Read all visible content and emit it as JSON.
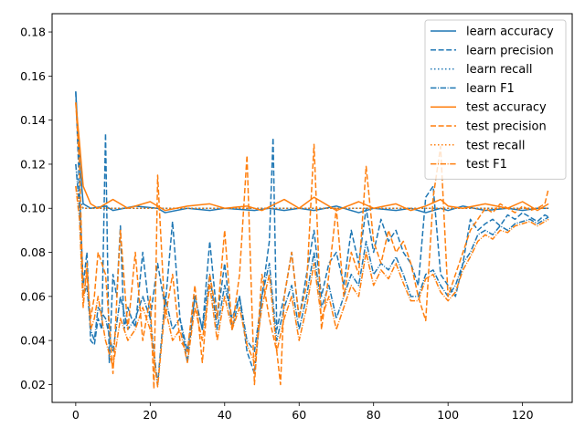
{
  "chart_data": {
    "type": "line",
    "title": "",
    "xlabel": "",
    "ylabel": "",
    "xlim": [
      -6.35,
      133.35
    ],
    "ylim": [
      0.0119,
      0.1883
    ],
    "xticks": [
      0,
      20,
      40,
      60,
      80,
      100,
      120
    ],
    "yticks": [
      0.02,
      0.04,
      0.06,
      0.08,
      0.1,
      0.12,
      0.14,
      0.16,
      0.18
    ],
    "ytick_labels": [
      "0.02",
      "0.04",
      "0.06",
      "0.08",
      "0.10",
      "0.12",
      "0.14",
      "0.16",
      "0.18"
    ],
    "grid": false,
    "legend_position": "top-right",
    "colors": {
      "learn": "#1f77b4",
      "test": "#ff7f0e"
    },
    "series": [
      {
        "name": "learn accuracy",
        "color": "#1f77b4",
        "dash": "solid",
        "x": [
          0,
          1,
          2,
          4,
          8,
          10,
          16,
          22,
          24,
          30,
          36,
          40,
          48,
          52,
          56,
          60,
          64,
          70,
          76,
          80,
          86,
          90,
          94,
          98,
          100,
          104,
          110,
          116,
          120,
          124,
          127
        ],
        "y": [
          0.153,
          0.122,
          0.102,
          0.1,
          0.101,
          0.099,
          0.101,
          0.1,
          0.098,
          0.1,
          0.099,
          0.1,
          0.099,
          0.1,
          0.099,
          0.1,
          0.099,
          0.101,
          0.098,
          0.1,
          0.099,
          0.1,
          0.098,
          0.1,
          0.099,
          0.101,
          0.099,
          0.1,
          0.099,
          0.1,
          0.1
        ]
      },
      {
        "name": "learn precision",
        "color": "#1f77b4",
        "dash": "dashed",
        "x": [
          0,
          1,
          2,
          3,
          4,
          5,
          6,
          7,
          8,
          9,
          10,
          11,
          12,
          13,
          14,
          15,
          16,
          18,
          20,
          22,
          24,
          26,
          28,
          30,
          32,
          34,
          36,
          38,
          40,
          42,
          44,
          46,
          48,
          50,
          52,
          53,
          54,
          56,
          58,
          60,
          62,
          64,
          66,
          68,
          70,
          72,
          74,
          76,
          78,
          80,
          82,
          84,
          86,
          88,
          90,
          92,
          94,
          96,
          98,
          100,
          102,
          104,
          106,
          108,
          110,
          112,
          114,
          116,
          118,
          120,
          122,
          124,
          126,
          127
        ],
        "y": [
          0.153,
          0.108,
          0.065,
          0.08,
          0.04,
          0.038,
          0.05,
          0.045,
          0.134,
          0.03,
          0.07,
          0.06,
          0.092,
          0.045,
          0.055,
          0.05,
          0.046,
          0.08,
          0.05,
          0.075,
          0.055,
          0.094,
          0.05,
          0.03,
          0.06,
          0.045,
          0.085,
          0.05,
          0.075,
          0.045,
          0.06,
          0.035,
          0.025,
          0.06,
          0.085,
          0.132,
          0.045,
          0.06,
          0.08,
          0.05,
          0.07,
          0.09,
          0.06,
          0.075,
          0.08,
          0.065,
          0.09,
          0.075,
          0.1,
          0.08,
          0.095,
          0.085,
          0.09,
          0.08,
          0.075,
          0.065,
          0.105,
          0.11,
          0.07,
          0.065,
          0.06,
          0.075,
          0.095,
          0.09,
          0.093,
          0.095,
          0.092,
          0.097,
          0.095,
          0.098,
          0.096,
          0.094,
          0.097,
          0.096
        ]
      },
      {
        "name": "learn recall",
        "color": "#1f77b4",
        "dash": "dotted",
        "x": [
          0,
          1,
          2,
          4,
          8,
          12,
          20,
          30,
          40,
          50,
          60,
          70,
          80,
          90,
          100,
          110,
          120,
          127
        ],
        "y": [
          0.12,
          0.105,
          0.1,
          0.1,
          0.1,
          0.1,
          0.1,
          0.1,
          0.1,
          0.1,
          0.1,
          0.1,
          0.1,
          0.1,
          0.1,
          0.1,
          0.1,
          0.1
        ]
      },
      {
        "name": "learn F1",
        "color": "#1f77b4",
        "dash": "dashdot",
        "x": [
          0,
          1,
          2,
          3,
          4,
          5,
          6,
          8,
          10,
          12,
          14,
          16,
          18,
          20,
          22,
          24,
          26,
          28,
          30,
          32,
          34,
          36,
          38,
          40,
          42,
          44,
          46,
          48,
          50,
          52,
          54,
          56,
          58,
          60,
          62,
          64,
          66,
          68,
          70,
          72,
          74,
          76,
          78,
          80,
          82,
          84,
          86,
          88,
          90,
          92,
          94,
          96,
          98,
          100,
          102,
          104,
          106,
          108,
          110,
          112,
          114,
          116,
          118,
          120,
          122,
          124,
          126,
          127
        ],
        "y": [
          0.12,
          0.1,
          0.06,
          0.065,
          0.045,
          0.04,
          0.055,
          0.05,
          0.035,
          0.06,
          0.045,
          0.05,
          0.06,
          0.05,
          0.02,
          0.06,
          0.045,
          0.05,
          0.035,
          0.06,
          0.045,
          0.07,
          0.045,
          0.065,
          0.05,
          0.06,
          0.04,
          0.035,
          0.06,
          0.075,
          0.04,
          0.055,
          0.065,
          0.045,
          0.06,
          0.08,
          0.055,
          0.065,
          0.05,
          0.06,
          0.07,
          0.065,
          0.085,
          0.07,
          0.075,
          0.072,
          0.078,
          0.07,
          0.06,
          0.06,
          0.07,
          0.072,
          0.065,
          0.06,
          0.065,
          0.075,
          0.08,
          0.088,
          0.09,
          0.088,
          0.092,
          0.09,
          0.093,
          0.094,
          0.095,
          0.093,
          0.095,
          0.096
        ]
      },
      {
        "name": "test accuracy",
        "color": "#ff7f0e",
        "dash": "solid",
        "x": [
          0,
          1,
          2,
          4,
          6,
          10,
          14,
          20,
          24,
          30,
          36,
          40,
          46,
          50,
          56,
          60,
          64,
          70,
          76,
          80,
          86,
          90,
          94,
          98,
          100,
          104,
          110,
          116,
          120,
          124,
          127
        ],
        "y": [
          0.148,
          0.13,
          0.11,
          0.102,
          0.1,
          0.104,
          0.1,
          0.103,
          0.099,
          0.101,
          0.102,
          0.1,
          0.101,
          0.099,
          0.104,
          0.1,
          0.105,
          0.099,
          0.103,
          0.1,
          0.102,
          0.099,
          0.101,
          0.104,
          0.101,
          0.1,
          0.102,
          0.1,
          0.103,
          0.099,
          0.102
        ]
      },
      {
        "name": "test precision",
        "color": "#ff7f0e",
        "dash": "dashed",
        "x": [
          0,
          1,
          2,
          3,
          4,
          5,
          6,
          8,
          10,
          12,
          14,
          16,
          18,
          20,
          21,
          22,
          24,
          26,
          28,
          30,
          32,
          34,
          36,
          38,
          40,
          42,
          44,
          46,
          48,
          50,
          52,
          54,
          55,
          56,
          58,
          60,
          62,
          64,
          66,
          68,
          70,
          72,
          74,
          76,
          78,
          80,
          82,
          84,
          86,
          88,
          90,
          92,
          94,
          96,
          98,
          100,
          102,
          104,
          106,
          108,
          110,
          112,
          114,
          116,
          118,
          120,
          122,
          124,
          126,
          127
        ],
        "y": [
          0.148,
          0.12,
          0.06,
          0.07,
          0.05,
          0.06,
          0.08,
          0.07,
          0.025,
          0.09,
          0.045,
          0.08,
          0.04,
          0.06,
          0.018,
          0.115,
          0.05,
          0.07,
          0.04,
          0.035,
          0.065,
          0.03,
          0.07,
          0.05,
          0.09,
          0.045,
          0.07,
          0.124,
          0.02,
          0.07,
          0.05,
          0.035,
          0.02,
          0.06,
          0.08,
          0.05,
          0.065,
          0.129,
          0.045,
          0.07,
          0.1,
          0.06,
          0.08,
          0.07,
          0.119,
          0.085,
          0.075,
          0.09,
          0.08,
          0.085,
          0.075,
          0.06,
          0.049,
          0.105,
          0.128,
          0.06,
          0.07,
          0.08,
          0.09,
          0.095,
          0.1,
          0.098,
          0.102,
          0.1,
          0.098,
          0.101,
          0.099,
          0.1,
          0.102,
          0.109
        ]
      },
      {
        "name": "test recall",
        "color": "#ff7f0e",
        "dash": "dotted",
        "x": [
          0,
          1,
          2,
          4,
          8,
          12,
          20,
          30,
          40,
          50,
          60,
          70,
          80,
          90,
          100,
          110,
          120,
          127
        ],
        "y": [
          0.11,
          0.102,
          0.1,
          0.1,
          0.1,
          0.1,
          0.1,
          0.1,
          0.1,
          0.1,
          0.1,
          0.1,
          0.1,
          0.1,
          0.1,
          0.1,
          0.1,
          0.1
        ]
      },
      {
        "name": "test F1",
        "color": "#ff7f0e",
        "dash": "dashdot",
        "x": [
          0,
          1,
          2,
          3,
          4,
          5,
          6,
          8,
          10,
          12,
          14,
          16,
          18,
          20,
          22,
          24,
          26,
          28,
          30,
          32,
          34,
          36,
          38,
          40,
          42,
          44,
          46,
          48,
          50,
          52,
          54,
          56,
          58,
          60,
          62,
          64,
          66,
          68,
          70,
          72,
          74,
          76,
          78,
          80,
          82,
          84,
          86,
          88,
          90,
          92,
          94,
          96,
          98,
          100,
          102,
          104,
          106,
          108,
          110,
          112,
          114,
          116,
          118,
          120,
          122,
          124,
          126,
          127
        ],
        "y": [
          0.11,
          0.095,
          0.055,
          0.075,
          0.045,
          0.05,
          0.06,
          0.04,
          0.028,
          0.05,
          0.04,
          0.045,
          0.055,
          0.045,
          0.019,
          0.055,
          0.04,
          0.045,
          0.03,
          0.055,
          0.04,
          0.065,
          0.04,
          0.06,
          0.045,
          0.055,
          0.038,
          0.03,
          0.055,
          0.07,
          0.035,
          0.05,
          0.06,
          0.04,
          0.055,
          0.075,
          0.05,
          0.06,
          0.045,
          0.055,
          0.065,
          0.06,
          0.08,
          0.065,
          0.072,
          0.068,
          0.075,
          0.066,
          0.058,
          0.058,
          0.068,
          0.07,
          0.062,
          0.058,
          0.062,
          0.072,
          0.078,
          0.085,
          0.088,
          0.086,
          0.09,
          0.089,
          0.092,
          0.093,
          0.094,
          0.092,
          0.094,
          0.095
        ]
      }
    ]
  }
}
